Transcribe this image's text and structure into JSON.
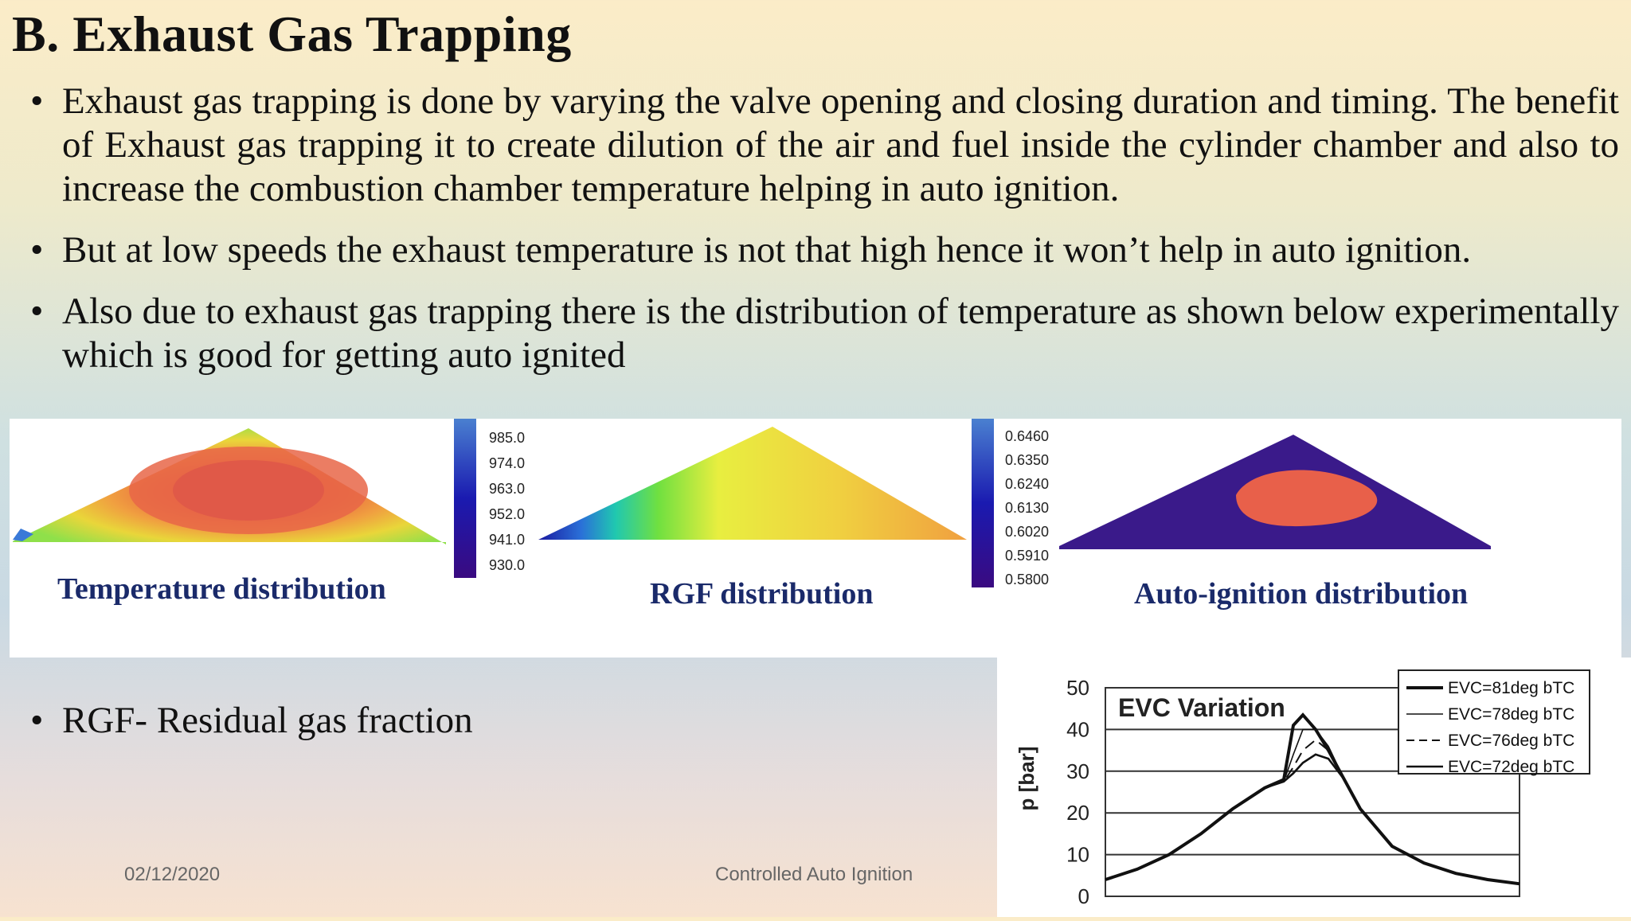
{
  "slide": {
    "title": "B. Exhaust Gas Trapping",
    "bullets": [
      "Exhaust gas trapping is done by varying the valve opening and closing duration and timing. The benefit of Exhaust gas trapping it to create dilution of the air and fuel inside the cylinder chamber and also to increase the combustion chamber temperature helping in auto ignition.",
      "But at low speeds the exhaust temperature is not that high hence it won’t help in auto ignition.",
      "Also due to exhaust gas trapping there is the distribution of temperature as shown below experimentally which is good for getting auto ignited"
    ],
    "note": "RGF- Residual gas fraction",
    "bullet_glyph": "•"
  },
  "figure": {
    "captions": [
      "Temperature distribution",
      "RGF distribution",
      "Auto-ignition distribution"
    ],
    "temp_scale": [
      "985.0",
      "974.0",
      "963.0",
      "952.0",
      "941.0",
      "930.0"
    ],
    "rgf_scale": [
      "0.6460",
      "0.6350",
      "0.6240",
      "0.6130",
      "0.6020",
      "0.5910",
      "0.5800"
    ]
  },
  "chart_data": {
    "type": "line",
    "title": "EVC Variation",
    "ylabel": "p [bar]",
    "xlabel": "",
    "ylim": [
      0,
      50
    ],
    "yticks": [
      0,
      10,
      20,
      30,
      40,
      50
    ],
    "x": [
      0,
      20,
      40,
      60,
      80,
      100,
      112,
      118,
      124,
      132,
      140,
      150,
      160,
      180,
      200,
      220,
      240,
      260
    ],
    "series": [
      {
        "name": "EVC=81deg bTC",
        "style": "solid-thick",
        "values": [
          4,
          6.5,
          10,
          15,
          21,
          26,
          28,
          41,
          43.5,
          40,
          35,
          28,
          21,
          12,
          8,
          5.5,
          4,
          3
        ]
      },
      {
        "name": "EVC=78deg bTC",
        "style": "solid-thin",
        "values": [
          4,
          6.5,
          10,
          15,
          21,
          26,
          27.5,
          34,
          40,
          40,
          36,
          28,
          21,
          12,
          8,
          5.5,
          4,
          3
        ]
      },
      {
        "name": "EVC=76deg bTC",
        "style": "dashed",
        "values": [
          4,
          6.5,
          10,
          15,
          21,
          26,
          27.5,
          31,
          35,
          37.5,
          35,
          28,
          21,
          12,
          8,
          5.5,
          4,
          3
        ]
      },
      {
        "name": "EVC=72deg bTC",
        "style": "solid-medium",
        "values": [
          4,
          6.5,
          10,
          15,
          21,
          26,
          27.5,
          29.5,
          32,
          34,
          33,
          28,
          21,
          12,
          8,
          5.5,
          4,
          3
        ]
      }
    ],
    "grid": true,
    "legend": "top-right"
  },
  "footer": {
    "date": "02/12/2020",
    "center": "Controlled Auto Ignition"
  },
  "colors": {
    "caption": "#1a2a6a",
    "auto_ignition_bg": "#3a1a8a",
    "auto_ignition_core": "#e8604a"
  }
}
